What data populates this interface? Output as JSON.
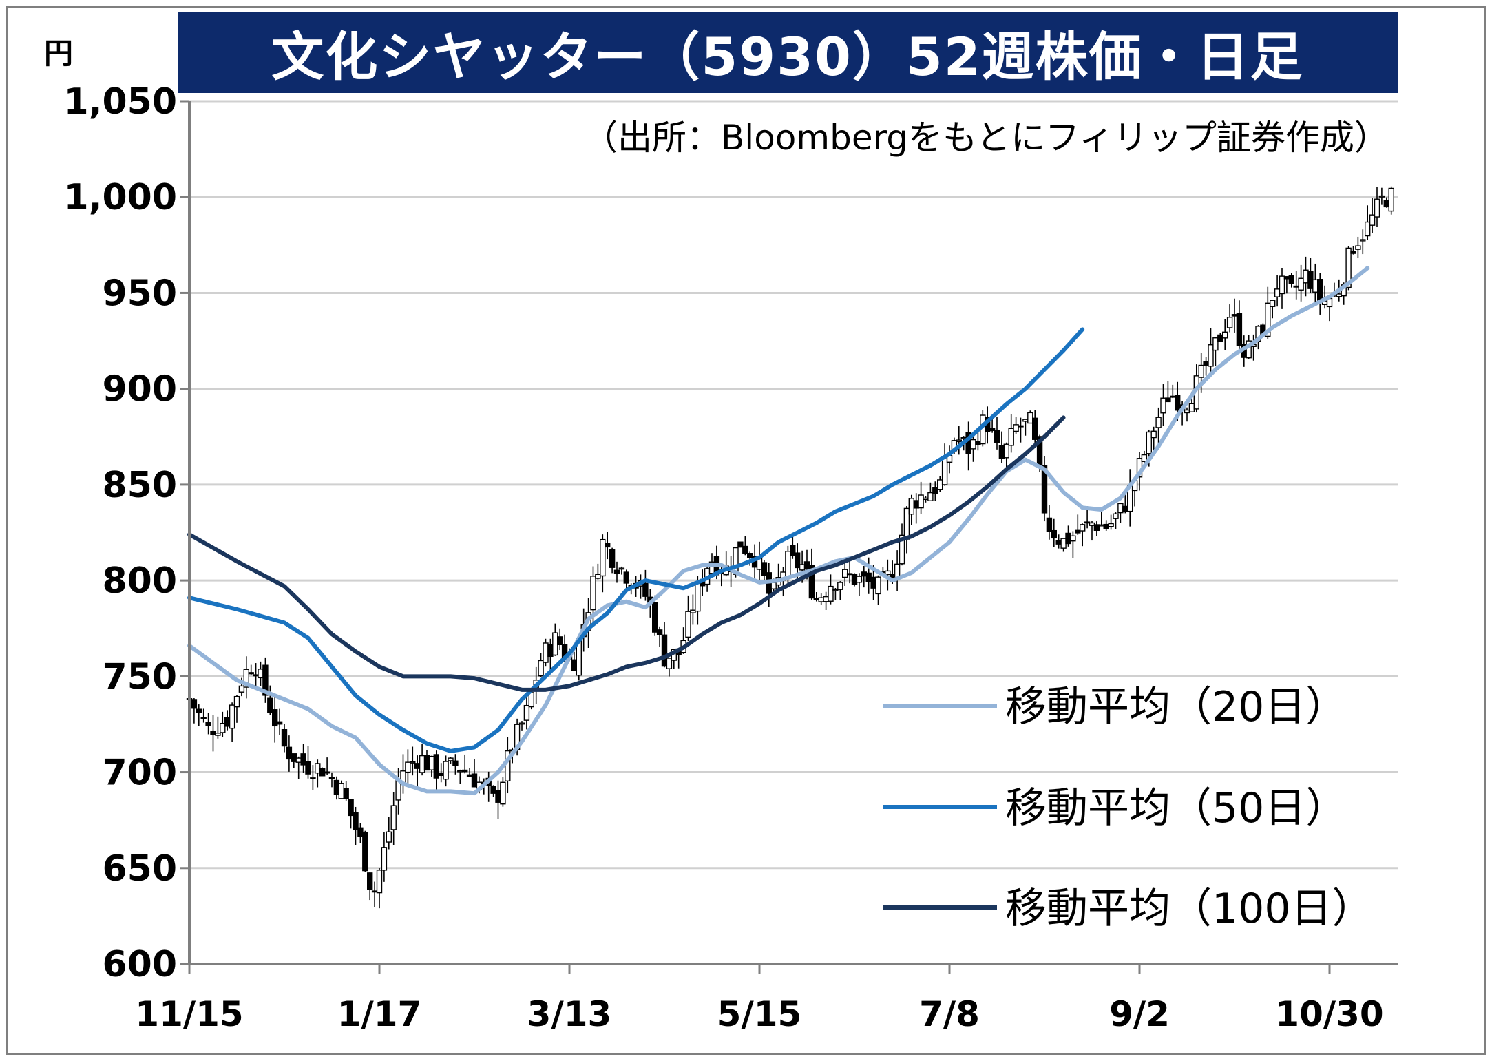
{
  "title": "文化シヤッター（5930）52週株価・日足",
  "unit": "円",
  "source": "（出所：Bloombergをもとにフィリップ証券作成）",
  "chart_data": {
    "type": "line",
    "title": "文化シヤッター（5930）52週株価・日足",
    "ylabel": "円",
    "ylim": [
      600,
      1050
    ],
    "yticks": [
      600,
      650,
      700,
      750,
      800,
      850,
      900,
      950,
      1000,
      1050
    ],
    "ytick_labels": [
      "600",
      "650",
      "700",
      "750",
      "800",
      "850",
      "900",
      "950",
      "1,000",
      "1,050"
    ],
    "xticks": [
      "11/15",
      "1/17",
      "3/13",
      "5/15",
      "7/8",
      "9/2",
      "10/30"
    ],
    "xtick_index": [
      0,
      40,
      80,
      120,
      160,
      200,
      240
    ],
    "n_days": 254,
    "grid": true,
    "legend_position": "bottom-right",
    "close_anchors": [
      [
        0,
        738
      ],
      [
        5,
        722
      ],
      [
        10,
        728
      ],
      [
        14,
        750
      ],
      [
        17,
        758
      ],
      [
        20,
        740
      ],
      [
        25,
        712
      ],
      [
        30,
        704
      ],
      [
        35,
        702
      ],
      [
        40,
        690
      ],
      [
        45,
        662
      ],
      [
        48,
        635
      ],
      [
        52,
        668
      ],
      [
        55,
        700
      ],
      [
        60,
        708
      ],
      [
        65,
        700
      ],
      [
        70,
        704
      ],
      [
        75,
        696
      ],
      [
        80,
        684
      ],
      [
        84,
        712
      ],
      [
        88,
        730
      ],
      [
        92,
        760
      ],
      [
        96,
        770
      ],
      [
        100,
        755
      ],
      [
        104,
        785
      ],
      [
        108,
        820
      ],
      [
        112,
        808
      ],
      [
        116,
        800
      ],
      [
        120,
        790
      ],
      [
        124,
        760
      ],
      [
        128,
        762
      ],
      [
        132,
        790
      ],
      [
        136,
        812
      ],
      [
        140,
        805
      ],
      [
        144,
        820
      ],
      [
        148,
        812
      ],
      [
        152,
        790
      ],
      [
        156,
        810
      ],
      [
        160,
        808
      ],
      [
        164,
        790
      ],
      [
        168,
        800
      ],
      [
        172,
        802
      ],
      [
        176,
        800
      ],
      [
        180,
        796
      ],
      [
        184,
        805
      ],
      [
        188,
        840
      ],
      [
        192,
        845
      ],
      [
        196,
        850
      ],
      [
        200,
        875
      ],
      [
        204,
        868
      ],
      [
        208,
        885
      ],
      [
        212,
        862
      ],
      [
        216,
        880
      ],
      [
        220,
        882
      ],
      [
        224,
        830
      ],
      [
        228,
        820
      ],
      [
        232,
        825
      ],
      [
        236,
        830
      ],
      [
        240,
        828
      ],
      [
        244,
        838
      ],
      [
        248,
        858
      ],
      [
        252,
        880
      ],
      [
        256,
        898
      ],
      [
        260,
        892
      ],
      [
        264,
        905
      ],
      [
        268,
        922
      ],
      [
        272,
        940
      ],
      [
        276,
        918
      ],
      [
        280,
        930
      ],
      [
        284,
        955
      ],
      [
        288,
        950
      ],
      [
        292,
        960
      ],
      [
        296,
        945
      ],
      [
        300,
        950
      ],
      [
        304,
        975
      ],
      [
        308,
        985
      ],
      [
        312,
        1000
      ],
      [
        314,
        1000
      ]
    ],
    "series": [
      {
        "name": "移動平均（20日）",
        "color": "#93b3d8",
        "values": [
          [
            0,
            766
          ],
          [
            10,
            748
          ],
          [
            20,
            738
          ],
          [
            25,
            733
          ],
          [
            30,
            724
          ],
          [
            35,
            718
          ],
          [
            40,
            704
          ],
          [
            45,
            694
          ],
          [
            50,
            690
          ],
          [
            55,
            690
          ],
          [
            60,
            689
          ],
          [
            65,
            700
          ],
          [
            70,
            716
          ],
          [
            75,
            735
          ],
          [
            80,
            760
          ],
          [
            84,
            780
          ],
          [
            88,
            787
          ],
          [
            92,
            789
          ],
          [
            96,
            786
          ],
          [
            100,
            795
          ],
          [
            104,
            805
          ],
          [
            108,
            808
          ],
          [
            112,
            808
          ],
          [
            116,
            803
          ],
          [
            120,
            799
          ],
          [
            124,
            800
          ],
          [
            128,
            803
          ],
          [
            132,
            806
          ],
          [
            136,
            810
          ],
          [
            140,
            812
          ],
          [
            144,
            806
          ],
          [
            148,
            800
          ],
          [
            152,
            804
          ],
          [
            156,
            812
          ],
          [
            160,
            820
          ],
          [
            164,
            832
          ],
          [
            168,
            845
          ],
          [
            172,
            857
          ],
          [
            176,
            863
          ],
          [
            180,
            858
          ],
          [
            184,
            846
          ],
          [
            188,
            838
          ],
          [
            192,
            837
          ],
          [
            196,
            843
          ],
          [
            200,
            856
          ],
          [
            204,
            870
          ],
          [
            208,
            886
          ],
          [
            212,
            900
          ],
          [
            216,
            910
          ],
          [
            220,
            918
          ],
          [
            224,
            924
          ],
          [
            228,
            932
          ],
          [
            232,
            938
          ],
          [
            236,
            943
          ],
          [
            240,
            948
          ],
          [
            244,
            955
          ],
          [
            248,
            963
          ]
        ]
      },
      {
        "name": "移動平均（50日）",
        "color": "#1a73c0",
        "values": [
          [
            0,
            791
          ],
          [
            10,
            785
          ],
          [
            20,
            778
          ],
          [
            25,
            770
          ],
          [
            30,
            755
          ],
          [
            35,
            740
          ],
          [
            40,
            730
          ],
          [
            45,
            722
          ],
          [
            50,
            715
          ],
          [
            55,
            711
          ],
          [
            60,
            713
          ],
          [
            65,
            722
          ],
          [
            70,
            738
          ],
          [
            75,
            750
          ],
          [
            80,
            762
          ],
          [
            84,
            775
          ],
          [
            88,
            783
          ],
          [
            92,
            795
          ],
          [
            96,
            800
          ],
          [
            100,
            798
          ],
          [
            104,
            796
          ],
          [
            108,
            800
          ],
          [
            112,
            805
          ],
          [
            116,
            808
          ],
          [
            120,
            812
          ],
          [
            124,
            820
          ],
          [
            128,
            825
          ],
          [
            132,
            830
          ],
          [
            136,
            836
          ],
          [
            140,
            840
          ],
          [
            144,
            844
          ],
          [
            148,
            850
          ],
          [
            152,
            855
          ],
          [
            156,
            860
          ],
          [
            160,
            866
          ],
          [
            164,
            874
          ],
          [
            168,
            883
          ],
          [
            172,
            892
          ],
          [
            176,
            900
          ],
          [
            180,
            910
          ],
          [
            184,
            920
          ],
          [
            188,
            931
          ]
        ]
      },
      {
        "name": "移動平均（100日）",
        "color": "#1b365d",
        "values": [
          [
            0,
            824
          ],
          [
            10,
            810
          ],
          [
            20,
            797
          ],
          [
            25,
            785
          ],
          [
            30,
            772
          ],
          [
            35,
            763
          ],
          [
            40,
            755
          ],
          [
            45,
            750
          ],
          [
            50,
            750
          ],
          [
            55,
            750
          ],
          [
            60,
            749
          ],
          [
            65,
            746
          ],
          [
            70,
            743
          ],
          [
            75,
            743
          ],
          [
            80,
            745
          ],
          [
            84,
            748
          ],
          [
            88,
            751
          ],
          [
            92,
            755
          ],
          [
            96,
            757
          ],
          [
            100,
            760
          ],
          [
            104,
            765
          ],
          [
            108,
            772
          ],
          [
            112,
            778
          ],
          [
            116,
            782
          ],
          [
            120,
            788
          ],
          [
            124,
            795
          ],
          [
            128,
            800
          ],
          [
            132,
            805
          ],
          [
            136,
            808
          ],
          [
            140,
            812
          ],
          [
            144,
            816
          ],
          [
            148,
            820
          ],
          [
            152,
            823
          ],
          [
            156,
            828
          ],
          [
            160,
            834
          ],
          [
            164,
            841
          ],
          [
            168,
            849
          ],
          [
            172,
            858
          ],
          [
            176,
            866
          ],
          [
            180,
            875
          ],
          [
            184,
            885
          ]
        ]
      }
    ]
  }
}
